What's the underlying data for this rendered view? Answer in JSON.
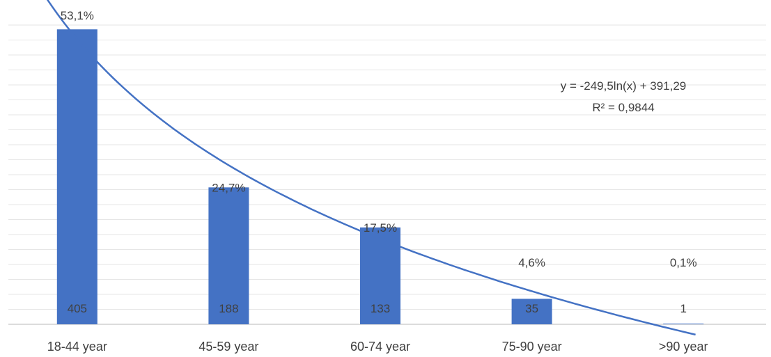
{
  "chart_data": {
    "type": "bar",
    "categories": [
      "18-44 year",
      "45-59 year",
      "60-74 year",
      "75-90 year",
      ">90 year"
    ],
    "values": [
      405,
      188,
      133,
      35,
      1
    ],
    "percent_labels": [
      "53,1%",
      "24,7%",
      "17,5%",
      "4,6%",
      "0,1%"
    ],
    "value_labels": [
      "405",
      "188",
      "133",
      "35",
      "1"
    ],
    "ylim": [
      0,
      430
    ],
    "grid": true,
    "bar_color": "#4472c4",
    "trendline": {
      "type": "logarithmic",
      "a": -249.5,
      "b": 391.29,
      "color": "#4472c4",
      "equation": "y = -249,5ln(x) + 391,29",
      "r_squared": "R² = 0,9844"
    }
  }
}
